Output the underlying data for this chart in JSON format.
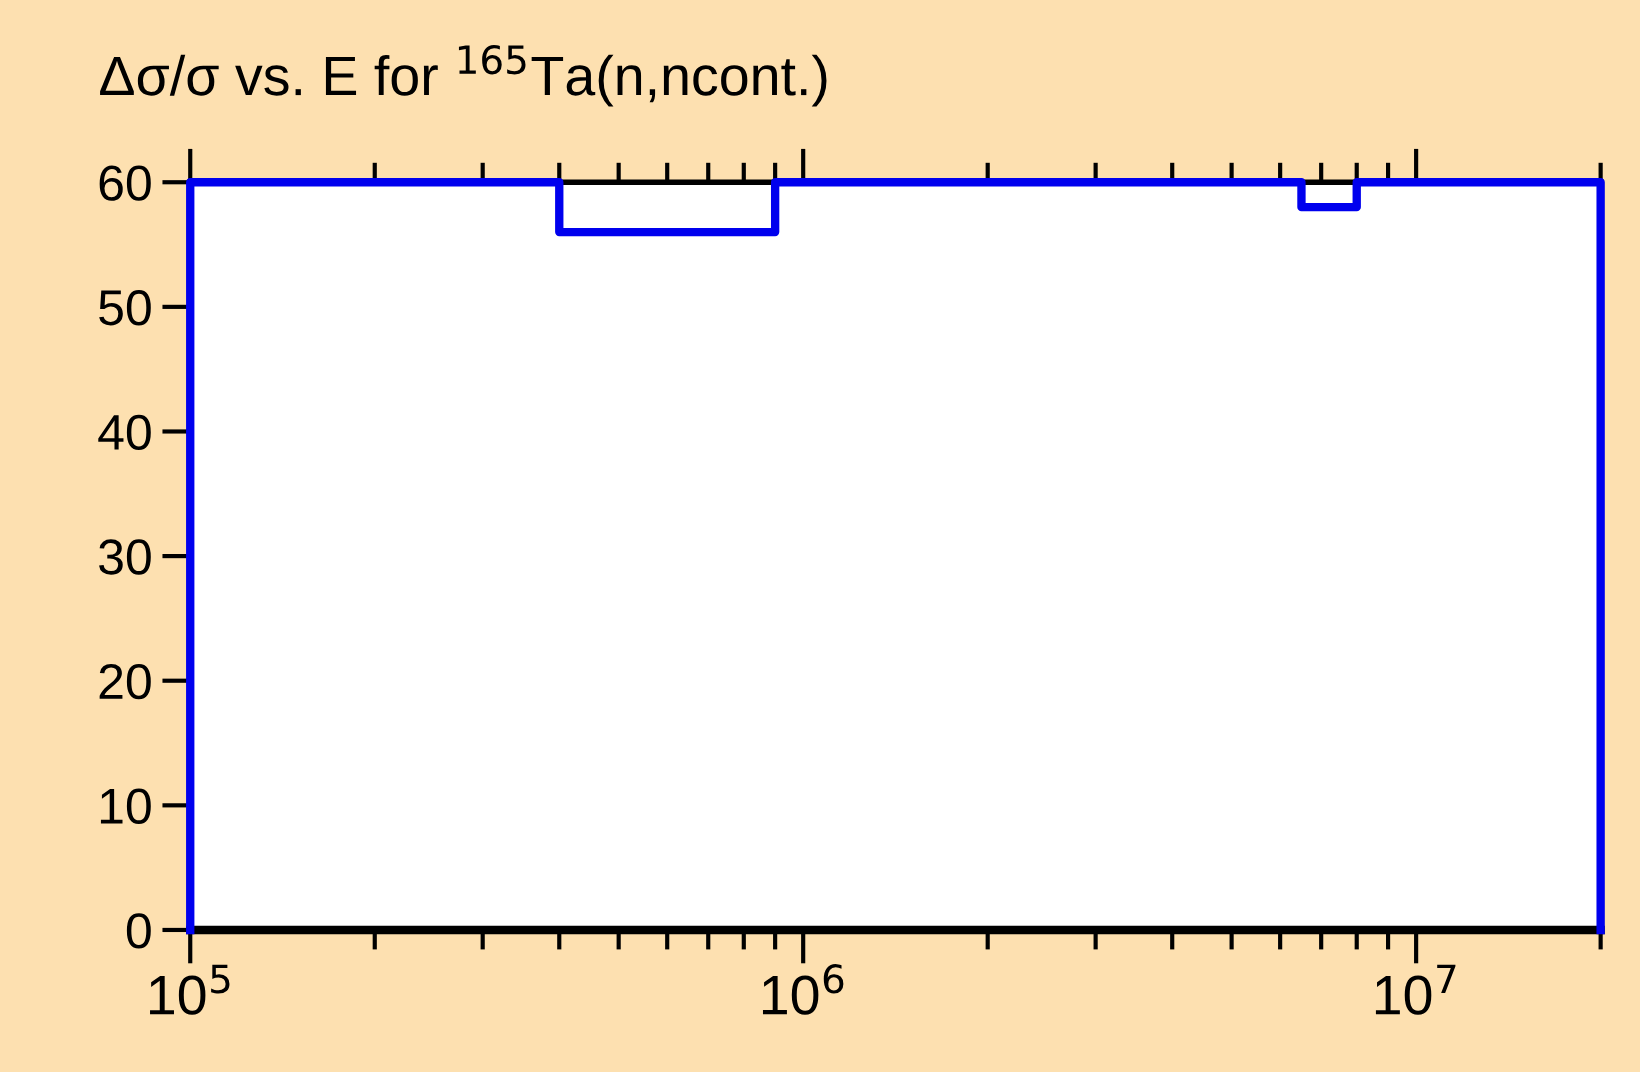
{
  "chart_data": {
    "type": "step",
    "title": "Δσ/σ vs. E for $^{165}$Ta(n,ncont.)",
    "log": "x",
    "xlim": [
      100000,
      20000000
    ],
    "xticks": [
      {
        "value": 100000,
        "label": "10$^{5}$"
      },
      {
        "value": 1000000,
        "label": "10$^{6}$"
      },
      {
        "value": 10000000,
        "label": "10$^{7}$"
      }
    ],
    "ylim": [
      0,
      60
    ],
    "yticks": [
      0,
      10,
      20,
      30,
      40,
      50,
      60
    ],
    "grid": false,
    "legend": false,
    "series": [
      {
        "color": "#0000ee",
        "x": [
          100000,
          100000,
          400000,
          900000,
          6500000,
          8000000,
          20000000
        ],
        "values": [
          0,
          60,
          56,
          60,
          58,
          60,
          0
        ]
      }
    ]
  }
}
